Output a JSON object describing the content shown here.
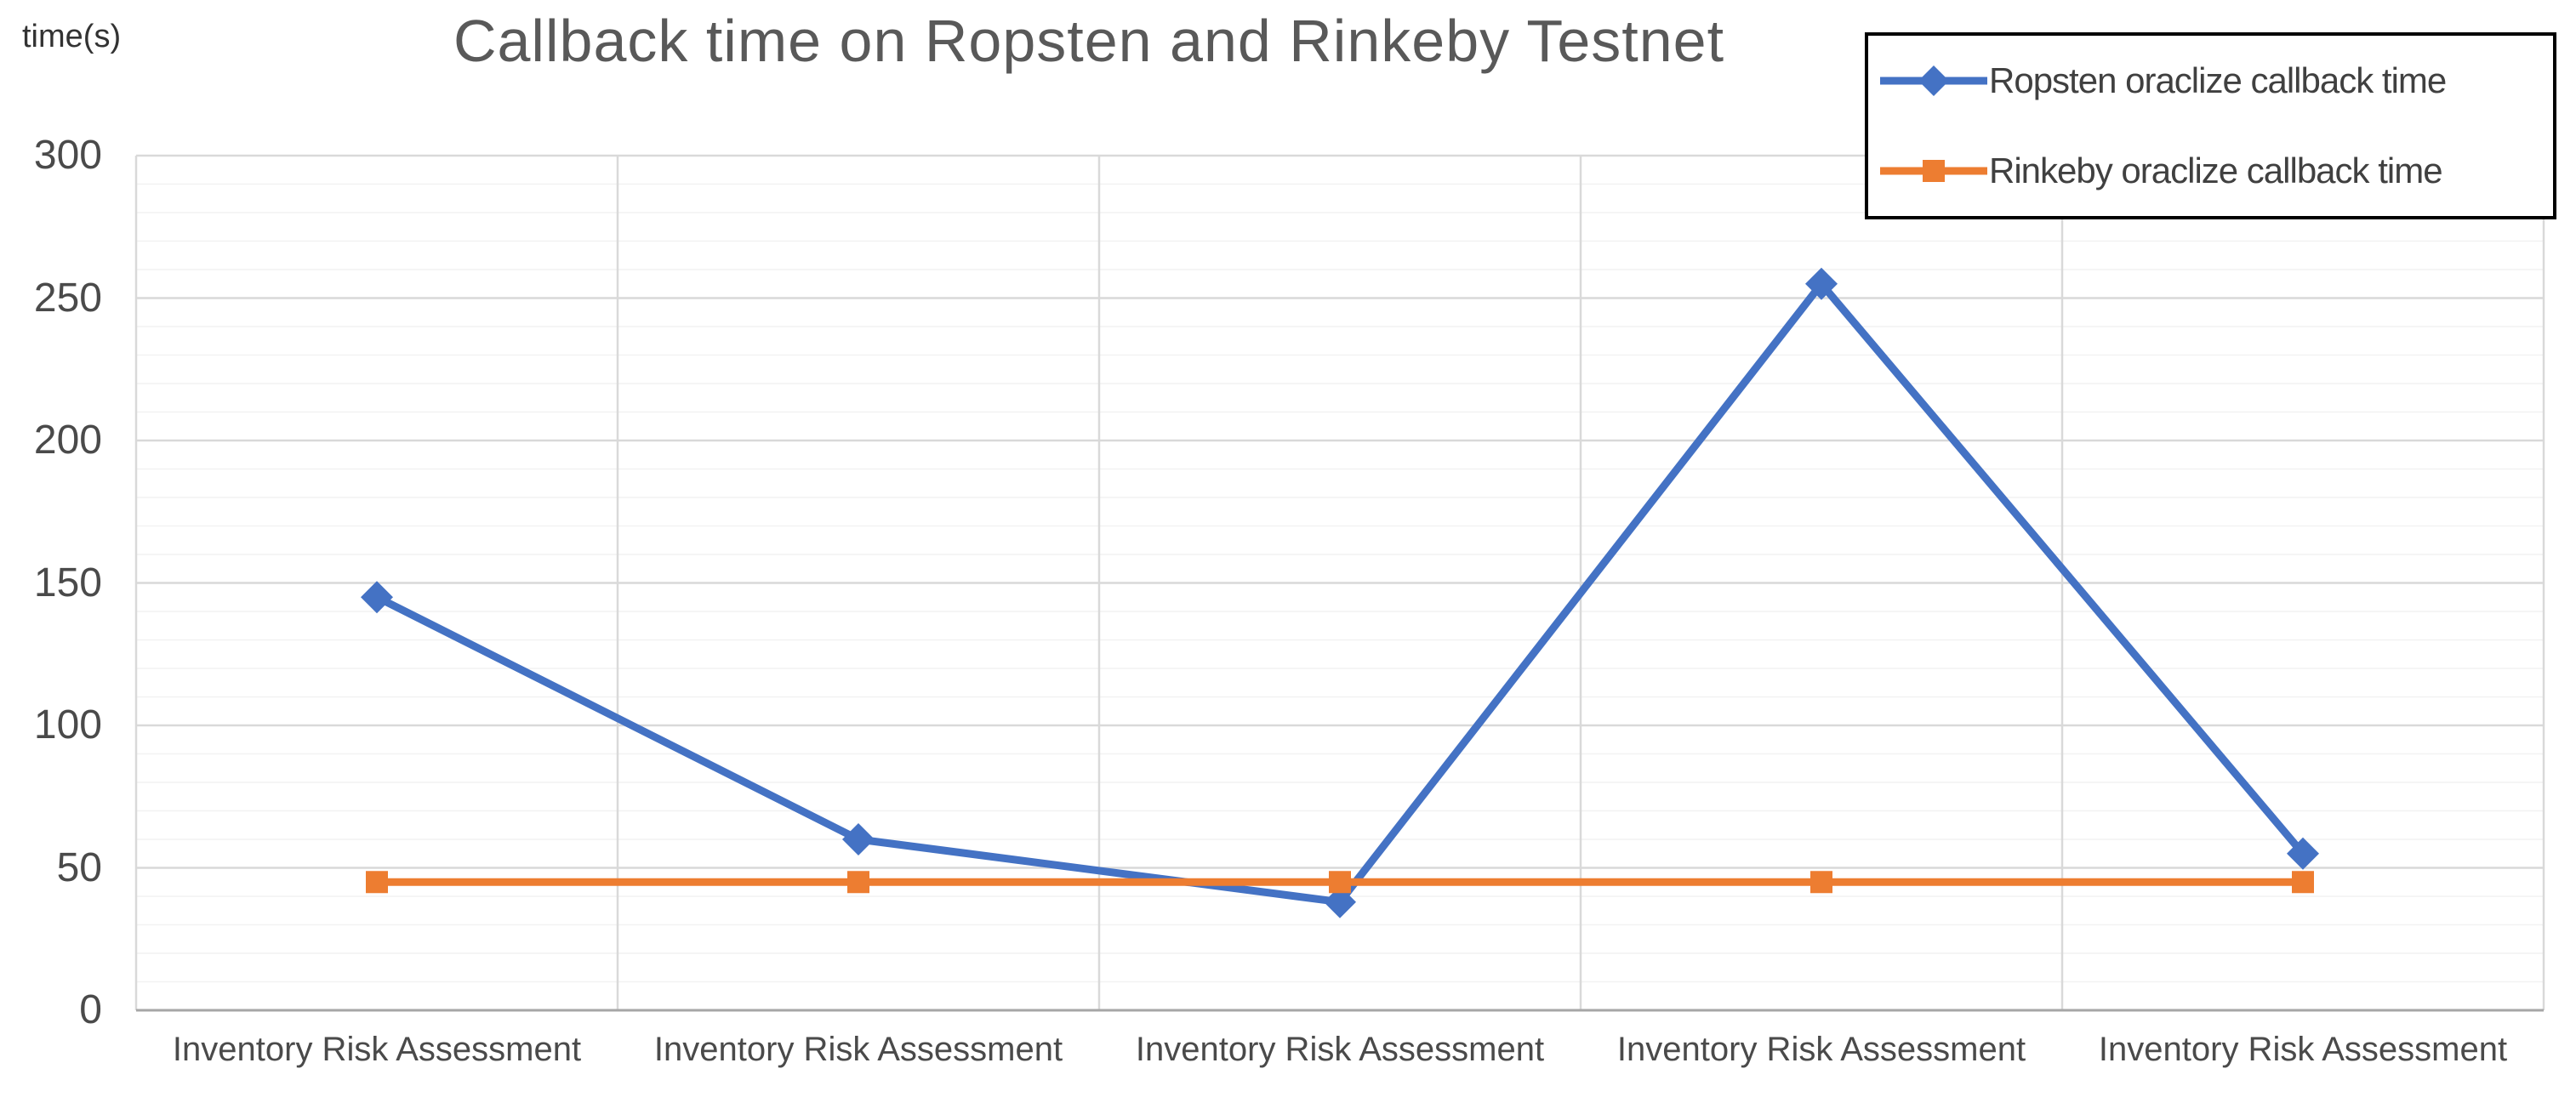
{
  "chart_data": {
    "type": "line",
    "title": "Callback time on Ropsten and Rinkeby Testnet",
    "ylabel": "time(s)",
    "xlabel": "",
    "categories": [
      "Inventory Risk Assessment",
      "Inventory Risk Assessment",
      "Inventory Risk Assessment",
      "Inventory Risk Assessment",
      "Inventory Risk Assessment"
    ],
    "series": [
      {
        "name": "Ropsten oraclize callback time",
        "color": "#4472C4",
        "marker": "diamond",
        "values": [
          145,
          60,
          38,
          255,
          55
        ]
      },
      {
        "name": "Rinkeby oraclize callback time",
        "color": "#ED7D31",
        "marker": "square",
        "values": [
          45,
          45,
          45,
          45,
          45
        ]
      }
    ],
    "ylim": [
      0,
      300
    ],
    "y_ticks": [
      0,
      50,
      100,
      150,
      200,
      250,
      300
    ],
    "y_minor_step": 10,
    "grid": true,
    "legend_position": "top-right",
    "colors": {
      "major_gridline": "#D9D9D9",
      "minor_gridline": "#F2F2F2",
      "axis_line": "#A6A6A6",
      "title_text": "#595959",
      "tick_text": "#4a4a4a"
    }
  }
}
